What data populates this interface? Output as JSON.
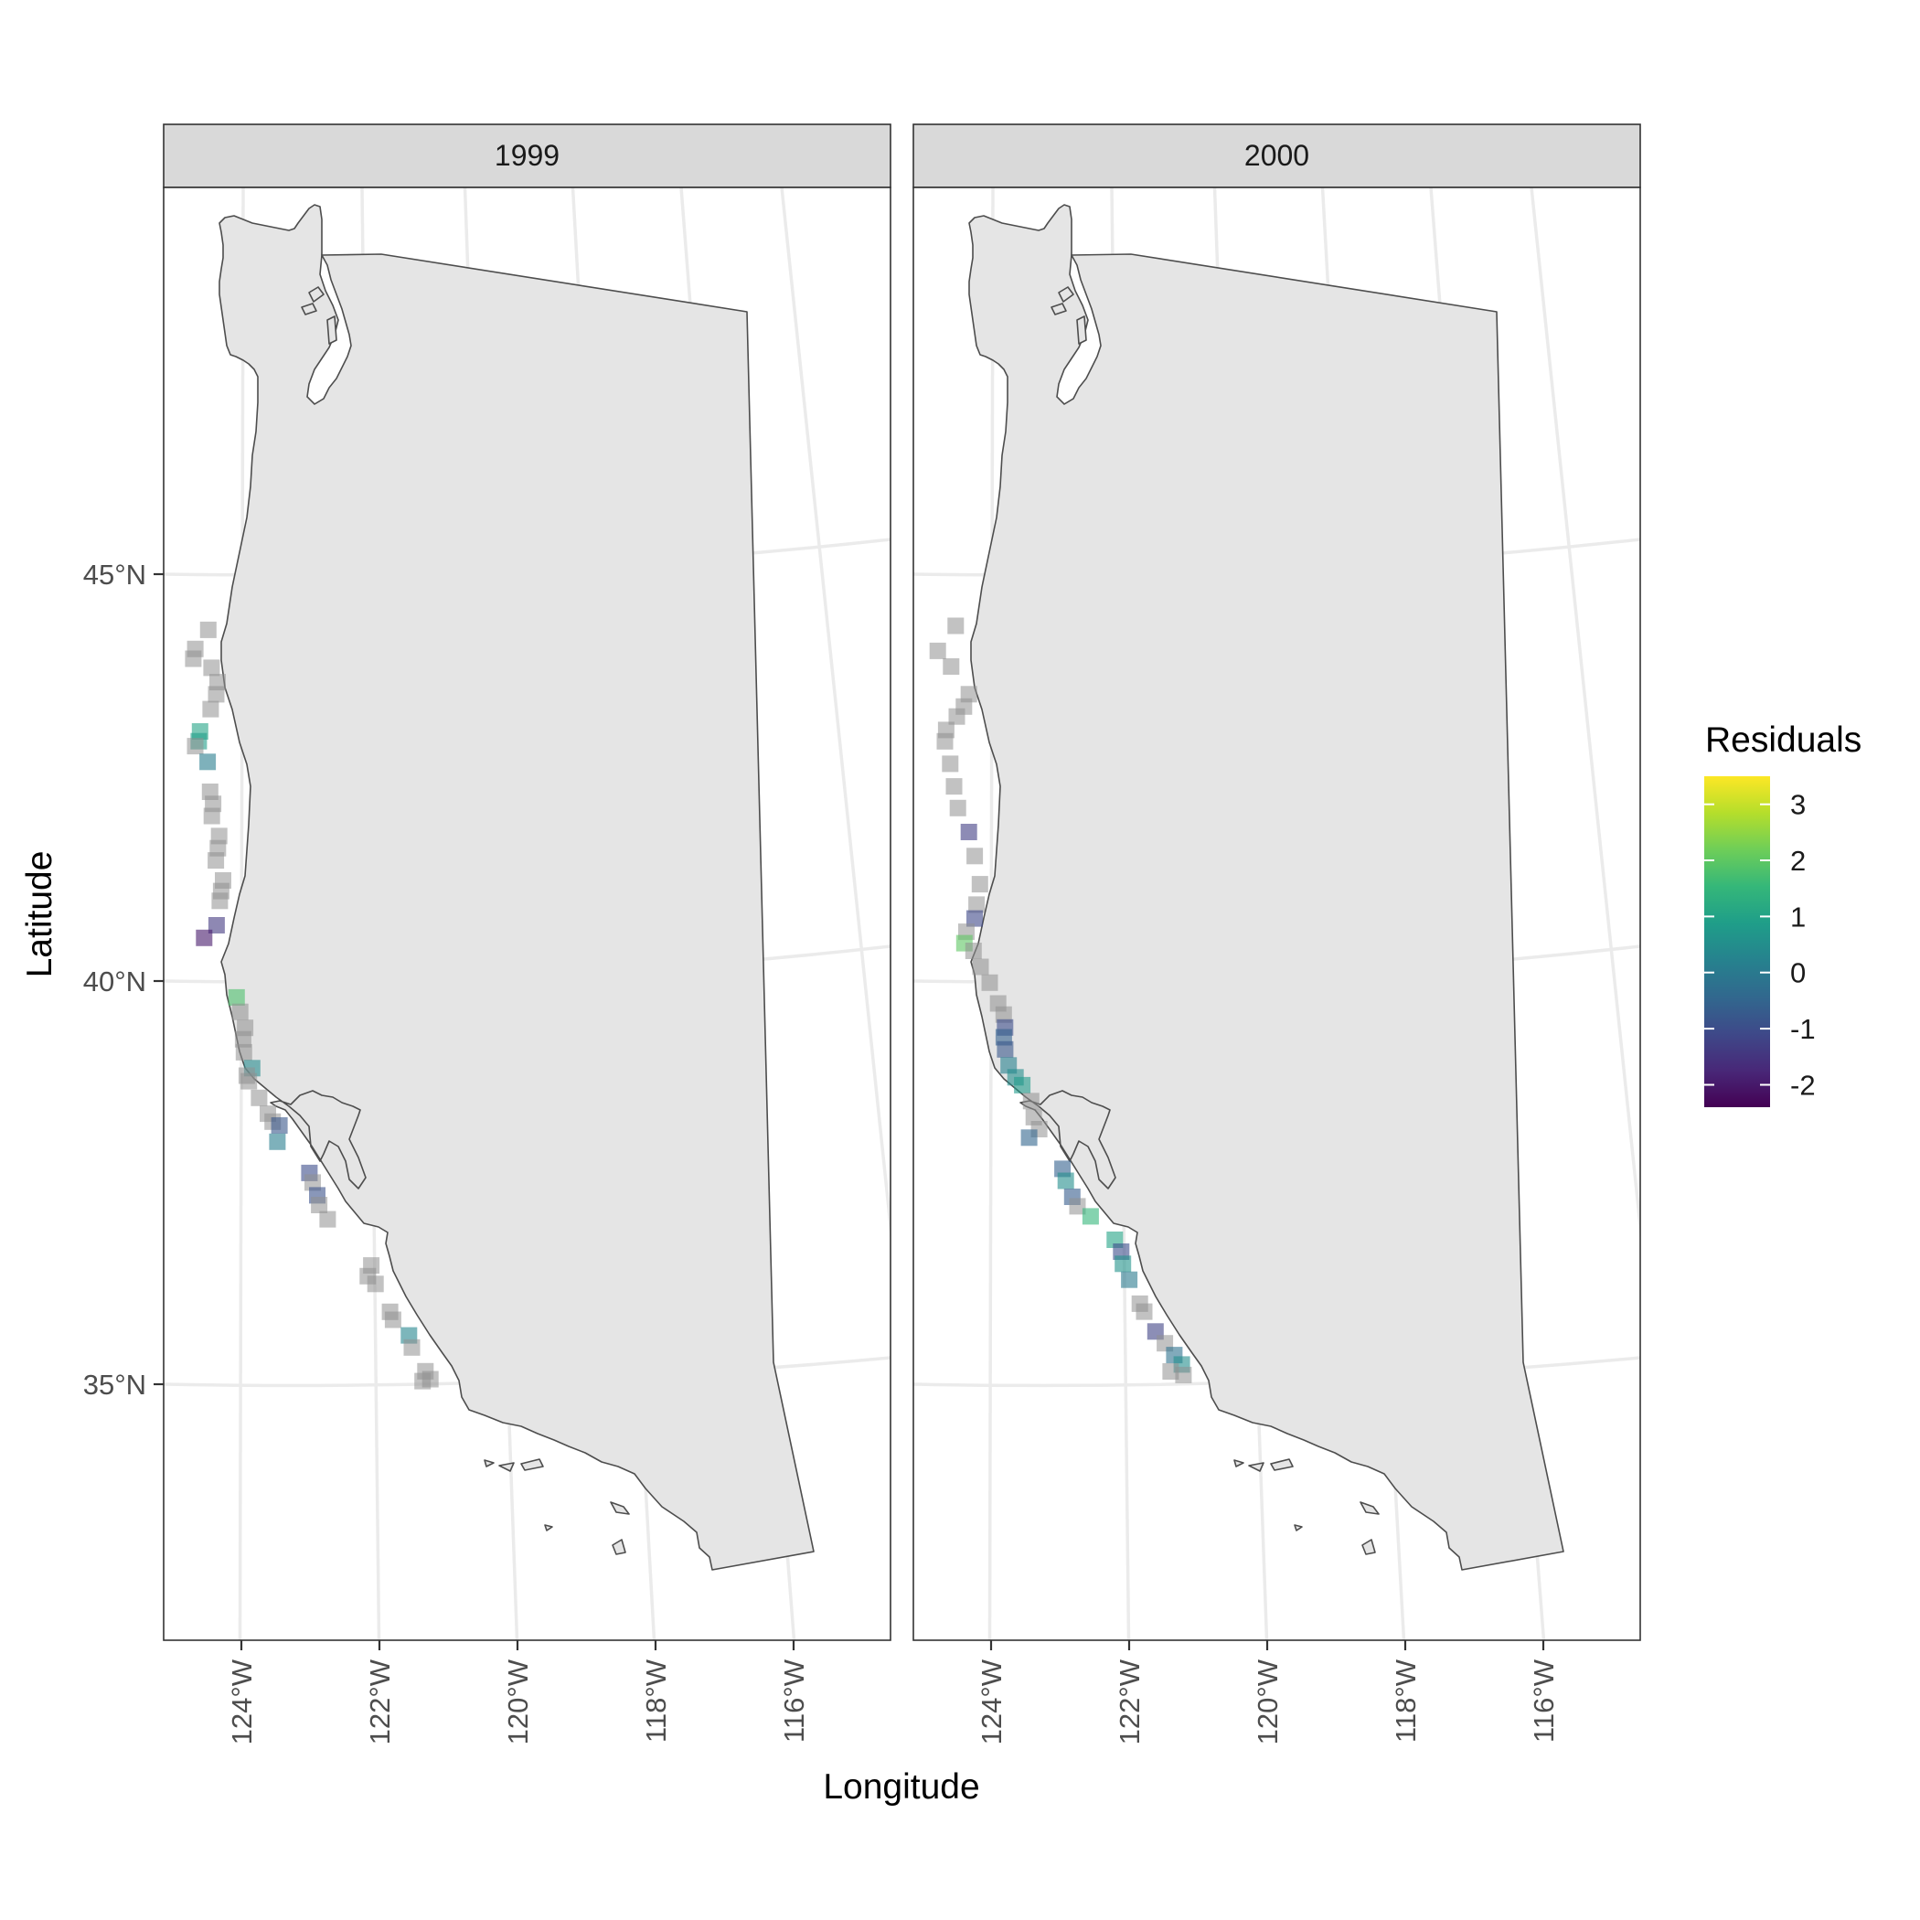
{
  "chart_data": {
    "type": "scatter",
    "facets": [
      {
        "strip_label": "1999",
        "points": [
          {
            "lon": -124.42,
            "lat": 44.35,
            "r": null
          },
          {
            "lon": -124.6,
            "lat": 44.12,
            "r": null
          },
          {
            "lon": -124.63,
            "lat": 44.0,
            "r": null
          },
          {
            "lon": -124.38,
            "lat": 43.88,
            "r": null
          },
          {
            "lon": -124.3,
            "lat": 43.7,
            "r": null
          },
          {
            "lon": -124.32,
            "lat": 43.55,
            "r": null
          },
          {
            "lon": -124.4,
            "lat": 43.37,
            "r": null
          },
          {
            "lon": -124.55,
            "lat": 43.1,
            "r": 1.0
          },
          {
            "lon": -124.57,
            "lat": 42.98,
            "r": 0.9
          },
          {
            "lon": -124.62,
            "lat": 42.92,
            "r": null
          },
          {
            "lon": -124.45,
            "lat": 42.72,
            "r": 0.1
          },
          {
            "lon": -124.42,
            "lat": 42.35,
            "r": null
          },
          {
            "lon": -124.38,
            "lat": 42.2,
            "r": null
          },
          {
            "lon": -124.4,
            "lat": 42.05,
            "r": null
          },
          {
            "lon": -124.3,
            "lat": 41.8,
            "r": null
          },
          {
            "lon": -124.32,
            "lat": 41.65,
            "r": null
          },
          {
            "lon": -124.35,
            "lat": 41.5,
            "r": null
          },
          {
            "lon": -124.25,
            "lat": 41.25,
            "r": null
          },
          {
            "lon": -124.28,
            "lat": 41.12,
            "r": null
          },
          {
            "lon": -124.3,
            "lat": 41.0,
            "r": null
          },
          {
            "lon": -124.35,
            "lat": 40.7,
            "r": -1.4
          },
          {
            "lon": -124.53,
            "lat": 40.55,
            "r": -2.0
          },
          {
            "lon": -124.07,
            "lat": 39.8,
            "r": 1.8
          },
          {
            "lon": -124.02,
            "lat": 39.62,
            "r": null
          },
          {
            "lon": -123.95,
            "lat": 39.42,
            "r": null
          },
          {
            "lon": -123.98,
            "lat": 39.28,
            "r": null
          },
          {
            "lon": -123.97,
            "lat": 39.12,
            "r": null
          },
          {
            "lon": -123.85,
            "lat": 38.92,
            "r": 0.4
          },
          {
            "lon": -123.93,
            "lat": 38.83,
            "r": null
          },
          {
            "lon": -123.9,
            "lat": 38.76,
            "r": null
          },
          {
            "lon": -123.75,
            "lat": 38.55,
            "r": null
          },
          {
            "lon": -123.62,
            "lat": 38.35,
            "r": null
          },
          {
            "lon": -123.55,
            "lat": 38.25,
            "r": null
          },
          {
            "lon": -123.45,
            "lat": 38.2,
            "r": -0.8
          },
          {
            "lon": -123.48,
            "lat": 38.0,
            "r": 0.1
          },
          {
            "lon": -123.0,
            "lat": 37.6,
            "r": -1.0
          },
          {
            "lon": -122.95,
            "lat": 37.48,
            "r": null
          },
          {
            "lon": -122.88,
            "lat": 37.32,
            "r": -0.9
          },
          {
            "lon": -122.85,
            "lat": 37.2,
            "r": null
          },
          {
            "lon": -122.72,
            "lat": 37.02,
            "r": null
          },
          {
            "lon": -122.05,
            "lat": 36.43,
            "r": null
          },
          {
            "lon": -122.1,
            "lat": 36.3,
            "r": null
          },
          {
            "lon": -121.98,
            "lat": 36.2,
            "r": null
          },
          {
            "lon": -121.75,
            "lat": 35.85,
            "r": null
          },
          {
            "lon": -121.7,
            "lat": 35.75,
            "r": null
          },
          {
            "lon": -121.45,
            "lat": 35.55,
            "r": 0.3
          },
          {
            "lon": -121.4,
            "lat": 35.4,
            "r": null
          },
          {
            "lon": -121.18,
            "lat": 35.1,
            "r": null
          },
          {
            "lon": -121.1,
            "lat": 35.0,
            "r": null
          },
          {
            "lon": -121.22,
            "lat": 34.98,
            "r": null
          }
        ]
      },
      {
        "strip_label": "2000",
        "points": [
          {
            "lon": -124.45,
            "lat": 44.4,
            "r": null
          },
          {
            "lon": -124.7,
            "lat": 44.1,
            "r": null
          },
          {
            "lon": -124.52,
            "lat": 43.9,
            "r": null
          },
          {
            "lon": -124.28,
            "lat": 43.55,
            "r": null
          },
          {
            "lon": -124.35,
            "lat": 43.4,
            "r": null
          },
          {
            "lon": -124.45,
            "lat": 43.28,
            "r": null
          },
          {
            "lon": -124.6,
            "lat": 43.12,
            "r": null
          },
          {
            "lon": -124.62,
            "lat": 42.98,
            "r": null
          },
          {
            "lon": -124.55,
            "lat": 42.7,
            "r": null
          },
          {
            "lon": -124.5,
            "lat": 42.42,
            "r": null
          },
          {
            "lon": -124.45,
            "lat": 42.15,
            "r": null
          },
          {
            "lon": -124.3,
            "lat": 41.85,
            "r": -1.3
          },
          {
            "lon": -124.22,
            "lat": 41.55,
            "r": null
          },
          {
            "lon": -124.15,
            "lat": 41.2,
            "r": null
          },
          {
            "lon": -124.2,
            "lat": 40.95,
            "r": null
          },
          {
            "lon": -124.23,
            "lat": 40.78,
            "r": -1.1
          },
          {
            "lon": -124.35,
            "lat": 40.62,
            "r": null
          },
          {
            "lon": -124.38,
            "lat": 40.48,
            "r": 2.0
          },
          {
            "lon": -124.25,
            "lat": 40.38,
            "r": null
          },
          {
            "lon": -124.15,
            "lat": 40.18,
            "r": null
          },
          {
            "lon": -124.02,
            "lat": 39.98,
            "r": null
          },
          {
            "lon": -123.9,
            "lat": 39.72,
            "r": null
          },
          {
            "lon": -123.82,
            "lat": 39.58,
            "r": null
          },
          {
            "lon": -123.8,
            "lat": 39.42,
            "r": -1.0
          },
          {
            "lon": -123.82,
            "lat": 39.3,
            "r": -0.6
          },
          {
            "lon": -123.8,
            "lat": 39.15,
            "r": -0.8
          },
          {
            "lon": -123.75,
            "lat": 38.95,
            "r": 0.2
          },
          {
            "lon": -123.65,
            "lat": 38.8,
            "r": 0.5
          },
          {
            "lon": -123.55,
            "lat": 38.7,
            "r": 0.8
          },
          {
            "lon": -123.42,
            "lat": 38.5,
            "r": null
          },
          {
            "lon": -123.38,
            "lat": 38.3,
            "r": null
          },
          {
            "lon": -123.3,
            "lat": 38.15,
            "r": null
          },
          {
            "lon": -123.45,
            "lat": 38.05,
            "r": -0.5
          },
          {
            "lon": -122.95,
            "lat": 37.65,
            "r": -0.6
          },
          {
            "lon": -122.9,
            "lat": 37.5,
            "r": 0.5
          },
          {
            "lon": -122.8,
            "lat": 37.3,
            "r": -0.7
          },
          {
            "lon": -122.72,
            "lat": 37.18,
            "r": null
          },
          {
            "lon": -122.52,
            "lat": 37.05,
            "r": 1.5
          },
          {
            "lon": -122.15,
            "lat": 36.75,
            "r": 1.0
          },
          {
            "lon": -122.05,
            "lat": 36.6,
            "r": -1.0
          },
          {
            "lon": -122.02,
            "lat": 36.45,
            "r": 0.6
          },
          {
            "lon": -121.92,
            "lat": 36.25,
            "r": 0.0
          },
          {
            "lon": -121.75,
            "lat": 35.95,
            "r": null
          },
          {
            "lon": -121.68,
            "lat": 35.85,
            "r": null
          },
          {
            "lon": -121.5,
            "lat": 35.6,
            "r": -1.2
          },
          {
            "lon": -121.35,
            "lat": 35.45,
            "r": null
          },
          {
            "lon": -121.2,
            "lat": 35.3,
            "r": -0.2
          },
          {
            "lon": -121.08,
            "lat": 35.18,
            "r": 0.5
          },
          {
            "lon": -121.05,
            "lat": 35.05,
            "r": null
          },
          {
            "lon": -121.25,
            "lat": 35.1,
            "r": null
          }
        ]
      }
    ],
    "xlabel": "Longitude",
    "ylabel": "Latitude",
    "x_ticks": [
      "124°W",
      "122°W",
      "120°W",
      "118°W",
      "116°W"
    ],
    "y_ticks": [
      "45°N",
      "40°N",
      "35°N"
    ],
    "legend": {
      "title": "Residuals",
      "labels": [
        "3",
        "2",
        "1",
        "0",
        "-1",
        "-2"
      ],
      "min": -2.4,
      "max": 3.5,
      "placement": "right",
      "colors": [
        "#440154",
        "#482878",
        "#3e4989",
        "#31688e",
        "#26828e",
        "#1f9e89",
        "#35b779",
        "#6ece58",
        "#b5de2b",
        "#fde725"
      ]
    },
    "na_color": "#909090",
    "grid": true,
    "land_fill": "#e5e5e5",
    "land_stroke": "#4d4d4d"
  }
}
